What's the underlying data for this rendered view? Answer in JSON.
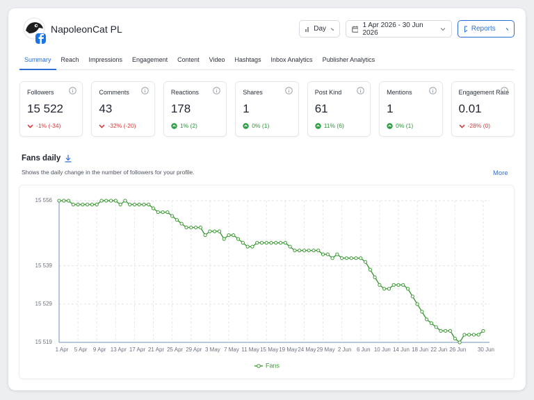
{
  "header": {
    "account": "NapoleonCat PL",
    "period": "Day",
    "date_range": "1 Apr 2026 - 30 Jun 2026",
    "reports": "Reports"
  },
  "tabs": [
    "Summary",
    "Reach",
    "Impressions",
    "Engagement",
    "Content",
    "Video",
    "Hashtags",
    "Inbox Analytics",
    "Publisher Analytics"
  ],
  "metrics": [
    {
      "label": "Followers",
      "value": "15 522",
      "change": "-1% (-34)",
      "trend": "down"
    },
    {
      "label": "Comments",
      "value": "43",
      "change": "-32% (-20)",
      "trend": "down"
    },
    {
      "label": "Reactions",
      "value": "178",
      "change": "1% (2)",
      "trend": "up"
    },
    {
      "label": "Shares",
      "value": "1",
      "change": "0% (1)",
      "trend": "up"
    },
    {
      "label": "Post Kind",
      "value": "61",
      "change": "11% (6)",
      "trend": "up"
    },
    {
      "label": "Mentions",
      "value": "1",
      "change": "0% (1)",
      "trend": "up"
    },
    {
      "label": "Engagement Rate",
      "value": "0.01",
      "change": "-28% (0)",
      "trend": "down"
    }
  ],
  "section": {
    "title": "Fans daily",
    "description": "Shows the daily change in the number of followers for your profile.",
    "more": "More"
  },
  "chart_data": {
    "type": "line",
    "categories": [
      "1 Apr",
      null,
      null,
      null,
      "5 Apr",
      null,
      null,
      null,
      "9 Apr",
      null,
      null,
      null,
      "13 Apr",
      null,
      null,
      null,
      "17 Apr",
      null,
      null,
      null,
      "21 Apr",
      null,
      null,
      null,
      "25 Apr",
      null,
      null,
      null,
      "29 Apr",
      null,
      null,
      null,
      "3 May",
      null,
      null,
      null,
      "7 May",
      null,
      null,
      null,
      "11 May",
      null,
      null,
      null,
      "15 May",
      null,
      null,
      null,
      "19 May",
      null,
      null,
      null,
      "24 May",
      null,
      null,
      null,
      "29 May",
      null,
      null,
      null,
      "2 Jun",
      null,
      null,
      null,
      "6 Jun",
      null,
      null,
      null,
      "10 Jun",
      null,
      null,
      null,
      "14 Jun",
      null,
      null,
      null,
      "18 Jun",
      null,
      null,
      null,
      "22 Jun",
      null,
      null,
      null,
      "26 Jun",
      null,
      null,
      null,
      null,
      null,
      "30 Jun"
    ],
    "series": [
      {
        "name": "Fans",
        "color": "#3c9a34",
        "values": [
          15556,
          15556,
          15556,
          15555,
          15555,
          15555,
          15555,
          15555,
          15555,
          15556,
          15556,
          15556,
          15556,
          15555,
          15556,
          15555,
          15555,
          15555,
          15555,
          15555,
          15554,
          15553,
          15553,
          15553,
          15552,
          15551,
          15550,
          15549,
          15549,
          15549,
          15549,
          15547,
          15548,
          15548,
          15548,
          15546,
          15547,
          15547,
          15546,
          15545,
          15544,
          15544,
          15545,
          15545,
          15545,
          15545,
          15545,
          15545,
          15545,
          15544,
          15543,
          15543,
          15543,
          15543,
          15543,
          15543,
          15542,
          15542,
          15541,
          15542,
          15541,
          15541,
          15541,
          15541,
          15541,
          15540,
          15538,
          15536,
          15534,
          15533,
          15533,
          15534,
          15534,
          15534,
          15533,
          15531,
          15529,
          15527,
          15525,
          15524,
          15523,
          15522,
          15522,
          15522,
          15520,
          15519,
          15521,
          15521,
          15521,
          15521,
          15522
        ]
      }
    ],
    "ylim": [
      15519,
      15556
    ],
    "yticks": [
      {
        "value": 15556,
        "label": "15 556"
      },
      {
        "value": 15539,
        "label": "15 539"
      },
      {
        "value": 15529,
        "label": "15 529"
      },
      {
        "value": 15519,
        "label": "15 519"
      }
    ],
    "grid": true
  }
}
